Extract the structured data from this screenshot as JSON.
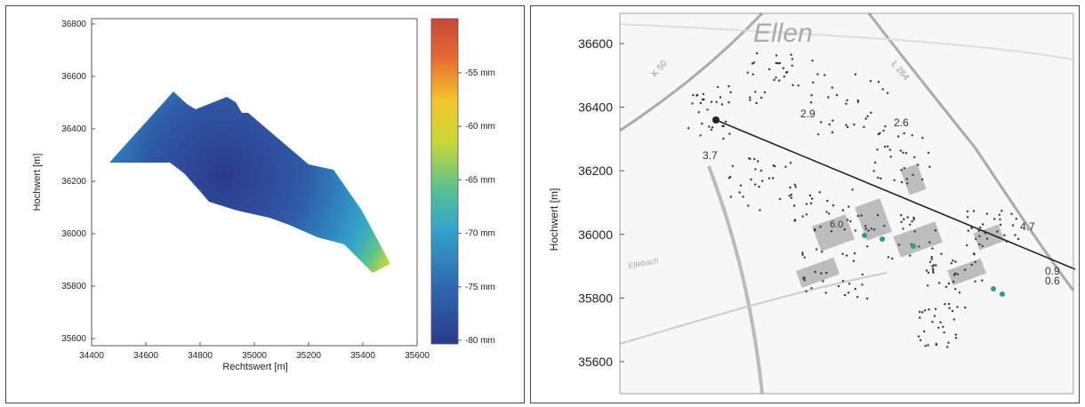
{
  "left_chart": {
    "xlabel": "Rechtswert [m]",
    "ylabel": "Hochwert [m]",
    "x_ticks": [
      "34400",
      "34600",
      "34800",
      "35000",
      "35200",
      "35400",
      "35600"
    ],
    "y_ticks": [
      "35600",
      "35800",
      "36000",
      "36200",
      "36400",
      "36600",
      "36800"
    ],
    "colorbar_labels": [
      "-55 mm",
      "-60 mm",
      "-65 mm",
      "-70 mm",
      "-75 mm",
      "-80 mm"
    ]
  },
  "right_chart": {
    "ylabel": "Hochwert [m]",
    "y_ticks": [
      "36600",
      "36400",
      "36200",
      "36000",
      "35800",
      "35600"
    ],
    "map_labels": {
      "place": "Ellen",
      "road_k50": "K 50",
      "road_l264": "L 264",
      "stream": "Ellebach"
    },
    "values": [
      "2.9",
      "2.6",
      "3.7",
      "4.7",
      "0.9",
      "0.6",
      "6.0"
    ]
  },
  "chart_data": [
    {
      "type": "heatmap",
      "title": "",
      "xlabel": "Rechtswert [m]",
      "ylabel": "Hochwert [m]",
      "xlim": [
        34400,
        35600
      ],
      "ylim": [
        35550,
        36850
      ],
      "x_ticks": [
        34400,
        34600,
        34800,
        35000,
        35200,
        35400,
        35600
      ],
      "y_ticks": [
        35600,
        35800,
        36000,
        36200,
        36400,
        36600,
        36800
      ],
      "colorbar": {
        "unit": "mm",
        "min": -80,
        "max": -50,
        "ticks": [
          -55,
          -60,
          -65,
          -70,
          -75,
          -80
        ],
        "colormap": [
          "#2b3a8c",
          "#2f6fb5",
          "#34a6c9",
          "#5cc28e",
          "#c8d838",
          "#f4c42a",
          "#f08a2a",
          "#c8463a"
        ]
      },
      "contour_region": "subsidence trough approx. 34470–35520 E, 35850–36540 N, minimum about -80 mm near 34900/36150"
    },
    {
      "type": "scatter",
      "title": "",
      "ylabel": "Hochwert [m]",
      "ylim": [
        35500,
        36700
      ],
      "y_ticks": [
        36600,
        36400,
        36200,
        36000,
        35800,
        35600
      ],
      "profile_line": {
        "from": "upper-left",
        "to": "lower-right"
      },
      "annotations": [
        "2.9",
        "2.6",
        "3.7",
        "4.7",
        "0.9",
        "0.6",
        "6.0"
      ]
    }
  ]
}
